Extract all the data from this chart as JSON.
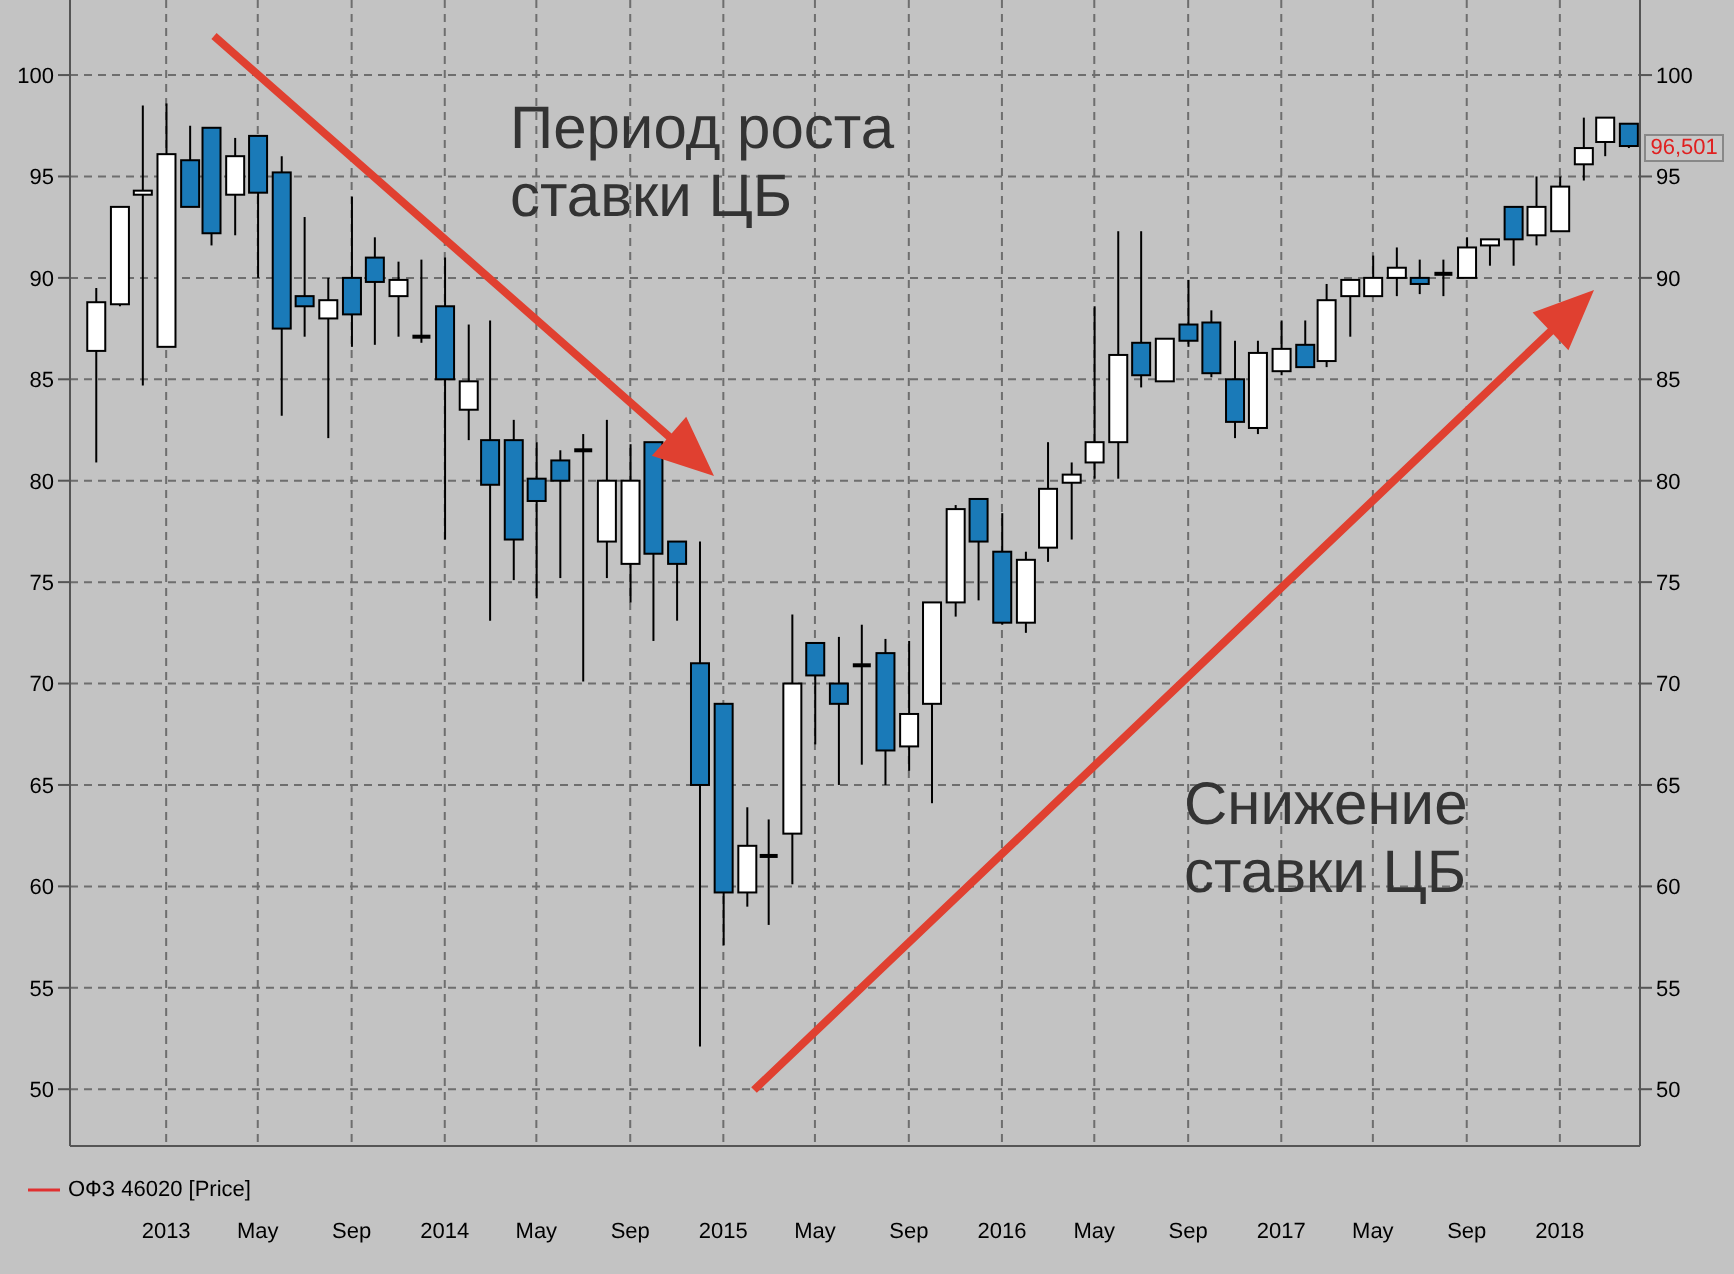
{
  "chart_data": {
    "type": "candlestick",
    "x": [
      "2012-10",
      "2012-11",
      "2012-12",
      "2013-01",
      "2013-02",
      "2013-03",
      "2013-04",
      "2013-05",
      "2013-06",
      "2013-07",
      "2013-08",
      "2013-09",
      "2013-10",
      "2013-11",
      "2013-12",
      "2014-01",
      "2014-02",
      "2014-03",
      "2014-04",
      "2014-05",
      "2014-06",
      "2014-07",
      "2014-08",
      "2014-09",
      "2014-10",
      "2014-11",
      "2014-12",
      "2015-01",
      "2015-02",
      "2015-03",
      "2015-04",
      "2015-05",
      "2015-06",
      "2015-07",
      "2015-08",
      "2015-09",
      "2015-10",
      "2015-11",
      "2015-12",
      "2016-01",
      "2016-02",
      "2016-03",
      "2016-04",
      "2016-05",
      "2016-06",
      "2016-07",
      "2016-08",
      "2016-09",
      "2016-10",
      "2016-11",
      "2016-12",
      "2017-01",
      "2017-02",
      "2017-03",
      "2017-04",
      "2017-05",
      "2017-06",
      "2017-07",
      "2017-08",
      "2017-09",
      "2017-10",
      "2017-11",
      "2017-12",
      "2018-01",
      "2018-02",
      "2018-03",
      "2018-04"
    ],
    "series": [
      {
        "name": "ОФЗ 46020 [Price]",
        "color": "#e03030",
        "ohlc": [
          [
            86.4,
            89.5,
            80.9,
            88.8
          ],
          [
            88.7,
            93.5,
            88.6,
            93.5
          ],
          [
            94.1,
            98.5,
            84.7,
            94.3
          ],
          [
            86.6,
            98.6,
            86.6,
            96.1
          ],
          [
            95.8,
            97.5,
            93.5,
            93.5
          ],
          [
            97.4,
            97.4,
            91.6,
            92.2
          ],
          [
            94.1,
            96.9,
            92.1,
            96.0
          ],
          [
            97.0,
            97.0,
            90.0,
            94.2
          ],
          [
            95.2,
            96.0,
            83.2,
            87.5
          ],
          [
            89.1,
            93.0,
            87.1,
            88.6
          ],
          [
            88.0,
            90.0,
            82.1,
            88.9
          ],
          [
            90.0,
            94.0,
            86.6,
            88.2
          ],
          [
            91.0,
            92.0,
            86.7,
            89.8
          ],
          [
            89.1,
            90.8,
            87.1,
            89.9
          ],
          [
            87.1,
            90.9,
            86.8,
            87.1
          ],
          [
            88.6,
            91.0,
            77.1,
            85.0
          ],
          [
            83.5,
            87.7,
            82.0,
            84.9
          ],
          [
            82.0,
            87.9,
            73.1,
            79.8
          ],
          [
            82.0,
            83.0,
            75.1,
            77.1
          ],
          [
            80.1,
            81.9,
            74.2,
            79.0
          ],
          [
            81.0,
            81.5,
            75.2,
            80.0
          ],
          [
            81.5,
            82.3,
            70.1,
            81.5
          ],
          [
            77.0,
            83.0,
            75.2,
            80.0
          ],
          [
            75.9,
            81.8,
            74.0,
            80.0
          ],
          [
            81.9,
            81.9,
            72.1,
            76.4
          ],
          [
            77.0,
            77.0,
            73.1,
            75.9
          ],
          [
            71.0,
            77.0,
            52.1,
            65.0
          ],
          [
            69.0,
            69.0,
            57.1,
            59.7
          ],
          [
            59.7,
            63.9,
            59.0,
            62.0
          ],
          [
            61.5,
            63.3,
            58.1,
            61.5
          ],
          [
            62.6,
            73.4,
            60.1,
            70.0
          ],
          [
            72.0,
            72.0,
            67.0,
            70.4
          ],
          [
            70.0,
            72.3,
            65.0,
            69.0
          ],
          [
            70.9,
            72.9,
            66.0,
            70.9
          ],
          [
            71.5,
            72.2,
            65.0,
            66.7
          ],
          [
            66.9,
            72.1,
            65.7,
            68.5
          ],
          [
            69.0,
            74.0,
            64.1,
            74.0
          ],
          [
            74.0,
            78.8,
            73.3,
            78.6
          ],
          [
            79.1,
            79.1,
            74.1,
            77.0
          ],
          [
            76.5,
            78.4,
            72.9,
            73.0
          ],
          [
            73.0,
            76.5,
            72.5,
            76.1
          ],
          [
            76.7,
            81.9,
            76.0,
            79.6
          ],
          [
            79.9,
            80.9,
            77.1,
            80.3
          ],
          [
            80.9,
            88.6,
            80.1,
            81.9
          ],
          [
            81.9,
            92.3,
            80.1,
            86.2
          ],
          [
            86.8,
            92.3,
            84.6,
            85.2
          ],
          [
            84.9,
            87.0,
            84.9,
            87.0
          ],
          [
            87.7,
            89.9,
            86.6,
            86.9
          ],
          [
            87.8,
            88.4,
            85.1,
            85.3
          ],
          [
            85.0,
            86.9,
            82.1,
            82.9
          ],
          [
            82.6,
            86.9,
            82.3,
            86.3
          ],
          [
            85.4,
            87.9,
            85.2,
            86.5
          ],
          [
            86.7,
            87.9,
            85.6,
            85.6
          ],
          [
            85.9,
            89.7,
            85.6,
            88.9
          ],
          [
            89.1,
            89.9,
            87.1,
            89.9
          ],
          [
            89.1,
            91.1,
            89.1,
            90.0
          ],
          [
            90.0,
            91.5,
            89.1,
            90.5
          ],
          [
            90.0,
            90.9,
            89.2,
            89.7
          ],
          [
            90.2,
            90.9,
            89.1,
            90.2
          ],
          [
            90.0,
            92.0,
            90.0,
            91.5
          ],
          [
            91.6,
            91.9,
            90.6,
            91.9
          ],
          [
            93.5,
            93.5,
            90.6,
            91.9
          ],
          [
            92.1,
            95.0,
            91.6,
            93.5
          ],
          [
            92.3,
            95.0,
            92.3,
            94.5
          ],
          [
            95.6,
            97.9,
            94.8,
            96.4
          ],
          [
            96.7,
            97.9,
            96.0,
            97.9
          ],
          [
            97.6,
            97.6,
            96.4,
            96.501
          ]
        ],
        "colors": [
          "#ffffff",
          "#ffffff",
          "#ffffff",
          "#ffffff",
          "#1a7ab8",
          "#1a7ab8",
          "#ffffff",
          "#1a7ab8",
          "#1a7ab8",
          "#1a7ab8",
          "#ffffff",
          "#1a7ab8",
          "#1a7ab8",
          "#ffffff",
          "#000000",
          "#1a7ab8",
          "#ffffff",
          "#1a7ab8",
          "#1a7ab8",
          "#1a7ab8",
          "#1a7ab8",
          "#000000",
          "#ffffff",
          "#ffffff",
          "#1a7ab8",
          "#1a7ab8",
          "#1a7ab8",
          "#1a7ab8",
          "#ffffff",
          "#000000",
          "#ffffff",
          "#1a7ab8",
          "#1a7ab8",
          "#000000",
          "#1a7ab8",
          "#ffffff",
          "#ffffff",
          "#ffffff",
          "#1a7ab8",
          "#1a7ab8",
          "#ffffff",
          "#ffffff",
          "#ffffff",
          "#ffffff",
          "#ffffff",
          "#1a7ab8",
          "#ffffff",
          "#1a7ab8",
          "#1a7ab8",
          "#1a7ab8",
          "#ffffff",
          "#ffffff",
          "#1a7ab8",
          "#ffffff",
          "#ffffff",
          "#ffffff",
          "#ffffff",
          "#1a7ab8",
          "#000000",
          "#ffffff",
          "#ffffff",
          "#1a7ab8",
          "#ffffff",
          "#ffffff",
          "#ffffff",
          "#ffffff",
          "#1a7ab8"
        ]
      }
    ],
    "xlim": [
      "2012-08-28",
      "2018-04-16"
    ],
    "xticks": [
      {
        "value": "2013-01",
        "label": "2013"
      },
      {
        "value": "2013-05",
        "label": "May"
      },
      {
        "value": "2013-09",
        "label": "Sep"
      },
      {
        "value": "2014-01",
        "label": "2014"
      },
      {
        "value": "2014-05",
        "label": "May"
      },
      {
        "value": "2014-09",
        "label": "Sep"
      },
      {
        "value": "2015-01",
        "label": "2015"
      },
      {
        "value": "2015-05",
        "label": "May"
      },
      {
        "value": "2015-09",
        "label": "Sep"
      },
      {
        "value": "2016-01",
        "label": "2016"
      },
      {
        "value": "2016-05",
        "label": "May"
      },
      {
        "value": "2016-09",
        "label": "Sep"
      },
      {
        "value": "2017-01",
        "label": "2017"
      },
      {
        "value": "2017-05",
        "label": "May"
      },
      {
        "value": "2017-09",
        "label": "Sep"
      },
      {
        "value": "2018-01",
        "label": "2018"
      }
    ],
    "ylim": [
      47.2,
      103.7
    ],
    "yticks": [
      50,
      55,
      60,
      65,
      70,
      75,
      80,
      85,
      90,
      95,
      100
    ],
    "y2lim": [
      47.2,
      103.7
    ],
    "y2ticks": [
      50,
      55,
      60,
      65,
      70,
      75,
      80,
      85,
      90,
      95,
      100
    ],
    "grid": true,
    "legend": "bottom left",
    "annotations": [
      "Период роста ставки ЦБ",
      "Снижение ставки ЦБ",
      {
        "text": "96,501",
        "x": "2018-04",
        "y": 96.501
      }
    ]
  }
}
